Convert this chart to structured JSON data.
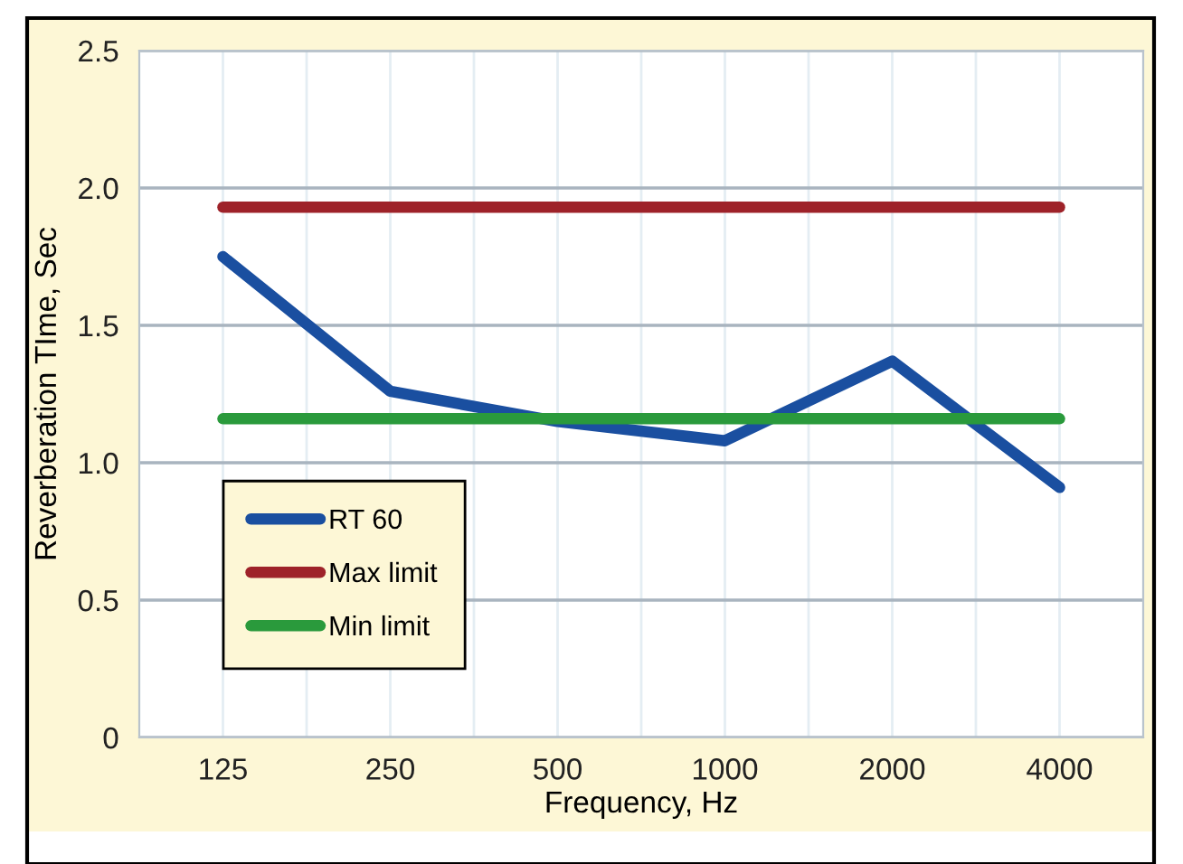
{
  "chart_data": {
    "type": "line",
    "xlabel": "Frequency, Hz",
    "ylabel": "Reverberation TIme, Sec",
    "categories": [
      "125",
      "250",
      "500",
      "1000",
      "2000",
      "4000"
    ],
    "series": [
      {
        "name": "RT 60",
        "color": "#1a4fa0",
        "values": [
          1.75,
          1.26,
          1.15,
          1.08,
          1.37,
          0.91
        ]
      },
      {
        "name": "Max limit",
        "color": "#9e2229",
        "values": [
          1.93,
          1.93,
          1.93,
          1.93,
          1.93,
          1.93
        ]
      },
      {
        "name": "Min limit",
        "color": "#2a9a3c",
        "values": [
          1.16,
          1.16,
          1.16,
          1.16,
          1.16,
          1.16
        ]
      }
    ],
    "ylim": [
      0,
      2.5
    ],
    "yticks": [
      {
        "value": 0,
        "label": "0"
      },
      0.5,
      {
        "value": 1,
        "label": "1.0"
      },
      1.5,
      {
        "value": 2,
        "label": "2.0"
      },
      2.5
    ],
    "grid": true,
    "legend": "bottom left",
    "marker": "none",
    "line_style": "solid"
  }
}
